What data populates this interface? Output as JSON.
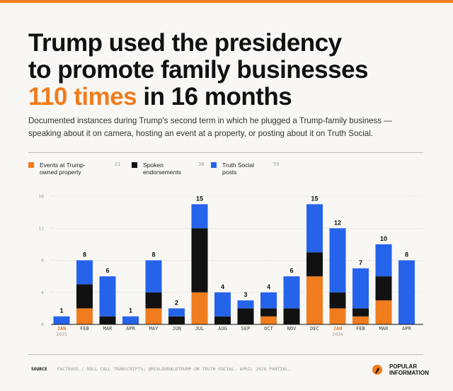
{
  "header": {
    "title_line1": "Trump used the presidency",
    "title_line2": "to promote family businesses",
    "title_highlight": "110 times",
    "title_rest": " in 16 months",
    "subtitle": "Documented instances during Trump's second term in which he plugged a Trump-family business — speaking about it on camera, hosting an event at a property, or posting about it on Truth Social."
  },
  "colors": {
    "accent": "#f07c1e",
    "events": "#f07c1e",
    "spoken": "#111111",
    "truth": "#2563eb"
  },
  "legend": [
    {
      "label": "Events at Trump-owned property",
      "count": "21",
      "color": "#f07c1e"
    },
    {
      "label": "Spoken endorsements",
      "count": "30",
      "color": "#111111"
    },
    {
      "label": "Truth Social posts",
      "count": "59",
      "color": "#2563eb"
    }
  ],
  "chart_data": {
    "type": "bar",
    "stacked": true,
    "categories": [
      "JAN",
      "FEB",
      "MAR",
      "APR",
      "MAY",
      "JUN",
      "JUL",
      "AUG",
      "SEP",
      "OCT",
      "NOV",
      "DEC",
      "JAN",
      "FEB",
      "MAR",
      "APR"
    ],
    "year_labels": {
      "0": "2025",
      "12": "2026"
    },
    "series": [
      {
        "name": "Events at Trump-owned property",
        "values": [
          0,
          2,
          0,
          0,
          2,
          0,
          4,
          0,
          0,
          1,
          0,
          6,
          2,
          1,
          3,
          0
        ]
      },
      {
        "name": "Spoken endorsements",
        "values": [
          0,
          3,
          1,
          0,
          2,
          1,
          8,
          1,
          2,
          1,
          2,
          3,
          2,
          1,
          3,
          0
        ]
      },
      {
        "name": "Truth Social posts",
        "values": [
          1,
          3,
          5,
          1,
          4,
          1,
          3,
          3,
          1,
          2,
          4,
          6,
          8,
          5,
          4,
          8
        ]
      }
    ],
    "totals": [
      "1",
      "8",
      "6",
      "1",
      "8",
      "2",
      "15",
      "4",
      "3",
      "4",
      "6",
      "15",
      "12",
      "7",
      "10",
      "8"
    ],
    "yticks": [
      "0",
      "4",
      "8",
      "12",
      "16"
    ],
    "ylim": [
      0,
      16
    ],
    "grid": true
  },
  "footer": {
    "source_label": "SOURCE",
    "source_text": "FACTBASE / ROLL CALL TRANSCRIPTS; @REALDONALDTRUMP ON TRUTH SOCIAL. APRIL 2026 PARTIAL.",
    "brand_line1": "POPULAR",
    "brand_line2": "INFORMATION"
  }
}
